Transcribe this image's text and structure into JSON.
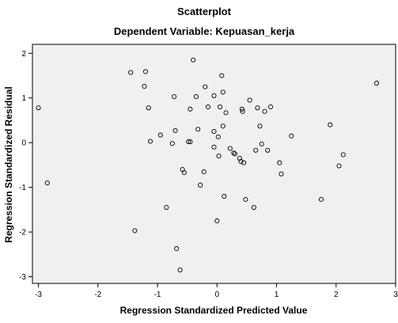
{
  "chart_data": {
    "type": "scatter",
    "title": "Scatterplot",
    "subtitle": "Dependent Variable: Kepuasan_kerja",
    "xlabel": "Regression Standardized Predicted Value",
    "ylabel": "Regression Standardized Residual",
    "xlim": [
      -3.1,
      3.0
    ],
    "ylim": [
      -3.15,
      2.2
    ],
    "x_ticks": [
      -3,
      -2,
      -1,
      0,
      1,
      2,
      3
    ],
    "y_ticks": [
      -3,
      -2,
      -1,
      0,
      1,
      2
    ],
    "grid": false,
    "colors": {
      "plot_background": "#f0f0f0",
      "marker_stroke": "#000000",
      "text": "#000000"
    },
    "points": [
      {
        "x": -3.0,
        "y": 0.78
      },
      {
        "x": -2.85,
        "y": -0.9
      },
      {
        "x": -1.45,
        "y": 1.57
      },
      {
        "x": -1.38,
        "y": -1.97
      },
      {
        "x": -1.22,
        "y": 1.26
      },
      {
        "x": -1.2,
        "y": 1.59
      },
      {
        "x": -1.15,
        "y": 0.78
      },
      {
        "x": -1.12,
        "y": 0.03
      },
      {
        "x": -0.95,
        "y": 0.17
      },
      {
        "x": -0.85,
        "y": -1.45
      },
      {
        "x": -0.75,
        "y": -0.02
      },
      {
        "x": -0.72,
        "y": 1.03
      },
      {
        "x": -0.7,
        "y": 0.27
      },
      {
        "x": -0.68,
        "y": -2.37
      },
      {
        "x": -0.62,
        "y": -2.85
      },
      {
        "x": -0.58,
        "y": -0.6
      },
      {
        "x": -0.55,
        "y": -0.67
      },
      {
        "x": -0.48,
        "y": 0.02
      },
      {
        "x": -0.45,
        "y": 0.02
      },
      {
        "x": -0.45,
        "y": 0.75
      },
      {
        "x": -0.4,
        "y": 1.85
      },
      {
        "x": -0.35,
        "y": 1.03
      },
      {
        "x": -0.32,
        "y": 0.3
      },
      {
        "x": -0.28,
        "y": -0.95
      },
      {
        "x": -0.22,
        "y": -0.65
      },
      {
        "x": -0.2,
        "y": 1.25
      },
      {
        "x": -0.15,
        "y": 0.8
      },
      {
        "x": -0.05,
        "y": -0.1
      },
      {
        "x": -0.05,
        "y": 0.25
      },
      {
        "x": -0.05,
        "y": 1.05
      },
      {
        "x": 0.02,
        "y": 0.13
      },
      {
        "x": 0.03,
        "y": -0.3
      },
      {
        "x": 0.05,
        "y": 0.8
      },
      {
        "x": 0.08,
        "y": 1.5
      },
      {
        "x": 0.1,
        "y": 0.37
      },
      {
        "x": 0.1,
        "y": 1.13
      },
      {
        "x": 0.12,
        "y": -1.2
      },
      {
        "x": 0.15,
        "y": 0.67
      },
      {
        "x": 0.22,
        "y": -0.13
      },
      {
        "x": 0.28,
        "y": -0.23
      },
      {
        "x": 0.3,
        "y": -0.25
      },
      {
        "x": 0.38,
        "y": -0.35
      },
      {
        "x": 0.4,
        "y": -0.42
      },
      {
        "x": 0.42,
        "y": 0.75
      },
      {
        "x": 0.43,
        "y": 0.7
      },
      {
        "x": 0.45,
        "y": -0.45
      },
      {
        "x": 0.48,
        "y": -1.27
      },
      {
        "x": 0.55,
        "y": 0.95
      },
      {
        "x": 0.62,
        "y": -1.45
      },
      {
        "x": 0.65,
        "y": -0.17
      },
      {
        "x": 0.68,
        "y": 0.78
      },
      {
        "x": 0.72,
        "y": 0.37
      },
      {
        "x": 0.75,
        "y": -0.03
      },
      {
        "x": 0.8,
        "y": 0.7
      },
      {
        "x": 0.85,
        "y": -0.17
      },
      {
        "x": 0.9,
        "y": 0.8
      },
      {
        "x": 1.05,
        "y": -0.45
      },
      {
        "x": 1.08,
        "y": -0.7
      },
      {
        "x": 1.25,
        "y": 0.15
      },
      {
        "x": 1.75,
        "y": -1.27
      },
      {
        "x": 1.9,
        "y": 0.4
      },
      {
        "x": 2.05,
        "y": -0.52
      },
      {
        "x": 2.12,
        "y": -0.27
      },
      {
        "x": 2.68,
        "y": 1.33
      },
      {
        "x": 0.0,
        "y": -1.75
      }
    ]
  }
}
